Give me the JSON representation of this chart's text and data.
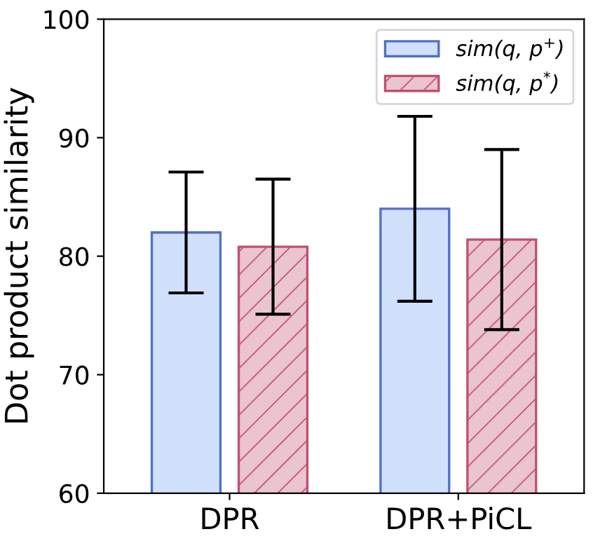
{
  "chart_data": {
    "type": "bar",
    "ylabel": "Dot product similarity",
    "categories": [
      "DPR",
      "DPR+PiCL"
    ],
    "series": [
      {
        "name": "sim(q, p$^{+}$)",
        "color": "#d0e0fa",
        "values": [
          82.0,
          84.0
        ],
        "errors": [
          5.1,
          7.8
        ]
      },
      {
        "name": "sim(q, p$^{*}$)",
        "color": "#c0506e",
        "values": [
          80.8,
          81.4
        ],
        "errors": [
          5.7,
          7.6
        ]
      }
    ],
    "ylim": [
      60,
      100
    ],
    "yticks": [
      60,
      70,
      80,
      90,
      100
    ],
    "legend": "top right",
    "grid": false
  }
}
